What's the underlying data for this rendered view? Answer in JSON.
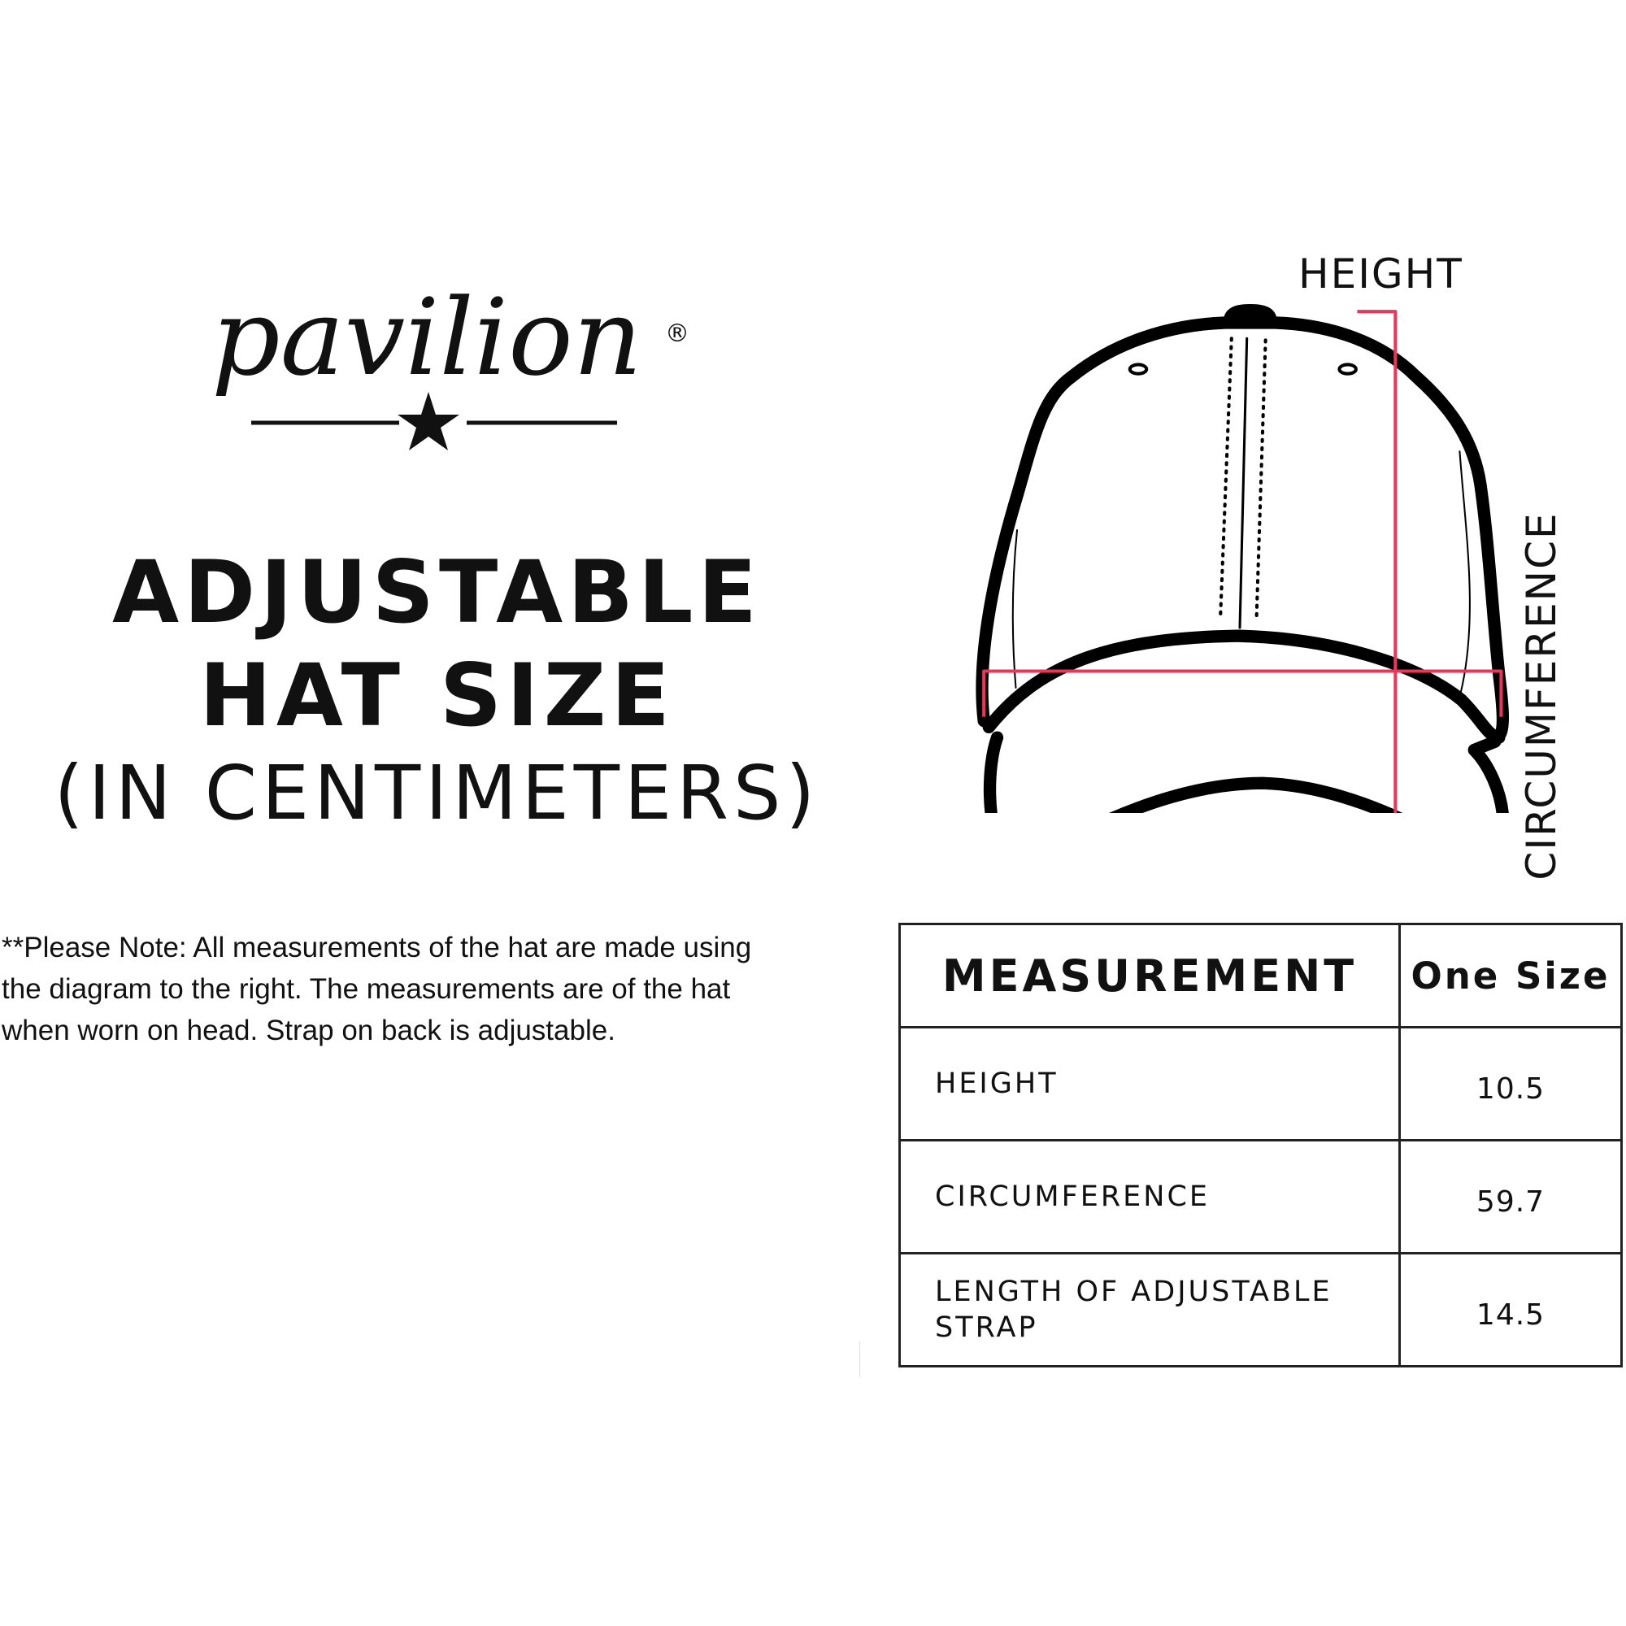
{
  "brand": {
    "logo_text": "pavilion",
    "registered_mark": "®"
  },
  "heading": {
    "line1": "ADJUSTABLE",
    "line2": "HAT SIZE",
    "line3": "(IN CENTIMETERS)"
  },
  "note": {
    "lines": [
      "**Please Note:  All measurements of the hat are made using",
      "the diagram to the right.  The measurements are of the hat",
      "when worn on head. Strap on back is adjustable."
    ]
  },
  "diagram": {
    "height_label": "HEIGHT",
    "circumference_label": "CIRCUMFERENCE",
    "measure_color": "#e8375a"
  },
  "table": {
    "headers": [
      "MEASUREMENT",
      "One Size"
    ],
    "rows": [
      {
        "label": "HEIGHT",
        "value": "10.5"
      },
      {
        "label": "CIRCUMFERENCE",
        "value": "59.7"
      },
      {
        "label": "LENGTH OF ADJUSTABLE STRAP",
        "value": "14.5"
      }
    ]
  }
}
